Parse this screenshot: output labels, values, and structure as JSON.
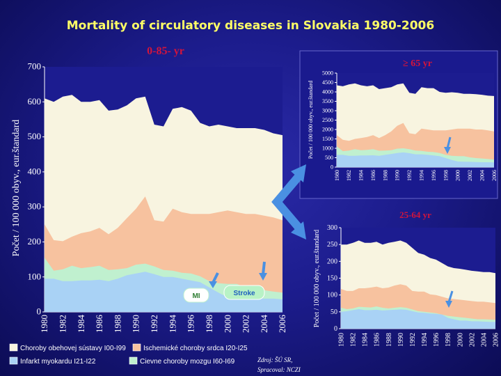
{
  "slide": {
    "title": "Mortality of circulatory diseases in Slovakia 1980-2006",
    "source_line1": "Zdroj: ŠÚ SR,",
    "source_line2": "Spracoval: NCZI"
  },
  "colors": {
    "total": "#f8f4e0",
    "ihd": "#f7c29f",
    "cerebro": "#c0f0cf",
    "mi": "#a9d2f5",
    "age_label": "#d2143c",
    "title": "#ffff66",
    "arrow": "#4a90e2"
  },
  "legend": [
    {
      "label": "Choroby obehovej sústavy I00-I99",
      "color": "#f8f4e0"
    },
    {
      "label": "Ischemické choroby srdca I20-I25",
      "color": "#f7c29f"
    },
    {
      "label": "Infarkt myokardu I21-I22",
      "color": "#a9d2f5"
    },
    {
      "label": "Cievne choroby mozgu I60-I69",
      "color": "#c0f0cf"
    }
  ],
  "chart_data": [
    {
      "type": "area",
      "title": "0-85- yr",
      "ylabel": "Počet / 100 000 obyv., eur.štandard",
      "ylim": [
        0,
        700
      ],
      "yticks": [
        0,
        100,
        200,
        300,
        400,
        500,
        600,
        700
      ],
      "xticks": [
        "1980",
        "1982",
        "1984",
        "1986",
        "1988",
        "1990",
        "1992",
        "1994",
        "1996",
        "1998",
        "2000",
        "2002",
        "2004",
        "2006"
      ],
      "x": [
        1980,
        1981,
        1982,
        1983,
        1984,
        1985,
        1986,
        1987,
        1988,
        1989,
        1990,
        1991,
        1992,
        1993,
        1994,
        1995,
        1996,
        1997,
        1998,
        1999,
        2000,
        2001,
        2002,
        2003,
        2004,
        2005,
        2006
      ],
      "annotations": [
        "MI",
        "Stroke"
      ],
      "series": [
        {
          "name": "Choroby obehovej sústavy I00-I99",
          "key": "total",
          "values": [
            610,
            600,
            615,
            620,
            600,
            600,
            605,
            575,
            578,
            590,
            610,
            615,
            535,
            530,
            580,
            585,
            575,
            540,
            530,
            535,
            530,
            525,
            525,
            525,
            520,
            510,
            505
          ]
        },
        {
          "name": "Ischemické choroby srdca I20-I25",
          "key": "ihd",
          "values": [
            250,
            205,
            202,
            215,
            225,
            230,
            240,
            222,
            240,
            268,
            295,
            330,
            262,
            258,
            295,
            285,
            280,
            280,
            280,
            285,
            290,
            285,
            280,
            280,
            275,
            270,
            262
          ]
        },
        {
          "name": "Cievne choroby mozgu I60-I69",
          "key": "cerebro",
          "values": [
            155,
            118,
            122,
            132,
            125,
            128,
            132,
            120,
            122,
            125,
            135,
            138,
            130,
            120,
            118,
            112,
            110,
            102,
            88,
            82,
            80,
            80,
            70,
            65,
            62,
            58,
            55
          ]
        },
        {
          "name": "Infarkt myokardu I21-I22",
          "key": "mi",
          "values": [
            95,
            95,
            88,
            88,
            90,
            90,
            92,
            88,
            95,
            105,
            110,
            115,
            108,
            100,
            100,
            95,
            90,
            85,
            70,
            55,
            42,
            42,
            40,
            40,
            38,
            38,
            36
          ]
        }
      ]
    },
    {
      "type": "area",
      "title": "≥ 65 yr",
      "ylabel": "Počet / 100 000 obyv., eur.štandard",
      "ylim": [
        0,
        5000
      ],
      "yticks": [
        0,
        500,
        1000,
        1500,
        2000,
        2500,
        3000,
        3500,
        4000,
        4500,
        5000
      ],
      "xticks": [
        "1980",
        "1982",
        "1984",
        "1986",
        "1988",
        "1990",
        "1992",
        "1994",
        "1996",
        "1998",
        "2000",
        "2002",
        "2004",
        "2006"
      ],
      "x": [
        1980,
        1981,
        1982,
        1983,
        1984,
        1985,
        1986,
        1987,
        1988,
        1989,
        1990,
        1991,
        1992,
        1993,
        1994,
        1995,
        1996,
        1997,
        1998,
        1999,
        2000,
        2001,
        2002,
        2003,
        2004,
        2005,
        2006
      ],
      "series": [
        {
          "name": "Choroby obehovej sústavy I00-I99",
          "key": "total",
          "values": [
            4350,
            4300,
            4400,
            4450,
            4350,
            4300,
            4350,
            4150,
            4200,
            4250,
            4400,
            4450,
            3950,
            3900,
            4250,
            4200,
            4200,
            4000,
            3950,
            3980,
            3950,
            3900,
            3900,
            3880,
            3850,
            3800,
            3780
          ]
        },
        {
          "name": "Ischemické choroby srdca I20-I25",
          "key": "ihd",
          "values": [
            1700,
            1450,
            1400,
            1500,
            1550,
            1600,
            1700,
            1550,
            1700,
            1900,
            2200,
            2350,
            1800,
            1750,
            2050,
            2000,
            1950,
            1950,
            1950,
            2000,
            2050,
            2050,
            2050,
            2000,
            2000,
            1950,
            1900
          ]
        },
        {
          "name": "Cievne choroby mozgu I60-I69",
          "key": "cerebro",
          "values": [
            1100,
            850,
            880,
            950,
            900,
            920,
            950,
            870,
            880,
            900,
            980,
            1000,
            950,
            880,
            860,
            820,
            800,
            750,
            650,
            600,
            580,
            580,
            520,
            480,
            460,
            430,
            400
          ]
        },
        {
          "name": "Infarkt myokardu I21-I22",
          "key": "mi",
          "values": [
            650,
            650,
            600,
            600,
            620,
            620,
            630,
            600,
            650,
            700,
            750,
            780,
            740,
            680,
            680,
            650,
            620,
            580,
            480,
            380,
            300,
            290,
            280,
            270,
            260,
            260,
            250
          ]
        }
      ]
    },
    {
      "type": "area",
      "title": "25-64 yr",
      "ylabel": "Počet / 100 000 obyv., eur.štandard",
      "ylim": [
        0,
        300
      ],
      "yticks": [
        0,
        50,
        100,
        150,
        200,
        250,
        300
      ],
      "xticks": [
        "1980",
        "1982",
        "1984",
        "1986",
        "1988",
        "1990",
        "1992",
        "1994",
        "1996",
        "1998",
        "2000",
        "2002",
        "2004",
        "2006"
      ],
      "x": [
        1980,
        1981,
        1982,
        1983,
        1984,
        1985,
        1986,
        1987,
        1988,
        1989,
        1990,
        1991,
        1992,
        1993,
        1994,
        1995,
        1996,
        1997,
        1998,
        1999,
        2000,
        2001,
        2002,
        2003,
        2004,
        2005,
        2006
      ],
      "series": [
        {
          "name": "Choroby obehovej sústavy I00-I99",
          "key": "total",
          "values": [
            250,
            250,
            255,
            262,
            255,
            255,
            258,
            250,
            255,
            258,
            262,
            255,
            240,
            225,
            220,
            210,
            205,
            195,
            185,
            180,
            178,
            175,
            172,
            170,
            168,
            168,
            165
          ]
        },
        {
          "name": "Ischemické choroby srdca I20-I25",
          "key": "ihd",
          "values": [
            118,
            112,
            112,
            120,
            120,
            122,
            125,
            120,
            122,
            128,
            132,
            128,
            112,
            110,
            110,
            102,
            100,
            95,
            90,
            88,
            86,
            84,
            82,
            80,
            80,
            78,
            76
          ]
        },
        {
          "name": "Cievne choroby mozgu I60-I69",
          "key": "cerebro",
          "values": [
            62,
            58,
            60,
            65,
            64,
            63,
            66,
            62,
            60,
            62,
            64,
            62,
            57,
            52,
            50,
            48,
            46,
            42,
            38,
            36,
            34,
            32,
            30,
            28,
            28,
            27,
            26
          ]
        },
        {
          "name": "Infarkt myokardu I21-I22",
          "key": "mi",
          "values": [
            50,
            52,
            55,
            58,
            55,
            55,
            56,
            54,
            55,
            56,
            57,
            56,
            52,
            48,
            47,
            45,
            44,
            42,
            32,
            28,
            24,
            24,
            22,
            22,
            21,
            20,
            20
          ]
        }
      ]
    }
  ]
}
